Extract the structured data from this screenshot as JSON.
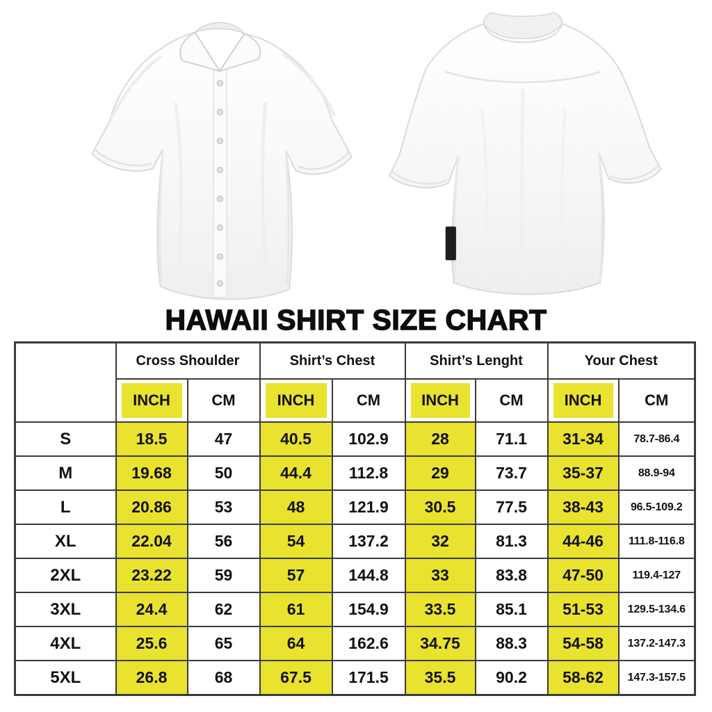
{
  "title": "HAWAII SHIRT SIZE CHART",
  "colors": {
    "highlight_yellow": "#e9e22f",
    "table_border": "#3a3a3a",
    "text": "#111111",
    "background": "#ffffff"
  },
  "images": {
    "front_shirt_alt": "white short-sleeve button-up shirt, front view",
    "back_shirt_alt": "white short-sleeve button-up shirt, back view with side tag"
  },
  "size_chart": {
    "groups": [
      "Cross Shoulder",
      "Shirt’s Chest",
      "Shirt’s Lenght",
      "Your Chest"
    ],
    "unit_headers": [
      "INCH",
      "CM"
    ],
    "rows": [
      {
        "size": "S",
        "values": [
          "18.5",
          "47",
          "40.5",
          "102.9",
          "28",
          "71.1",
          "31-34",
          "78.7-86.4"
        ]
      },
      {
        "size": "M",
        "values": [
          "19.68",
          "50",
          "44.4",
          "112.8",
          "29",
          "73.7",
          "35-37",
          "88.9-94"
        ]
      },
      {
        "size": "L",
        "values": [
          "20.86",
          "53",
          "48",
          "121.9",
          "30.5",
          "77.5",
          "38-43",
          "96.5-109.2"
        ]
      },
      {
        "size": "XL",
        "values": [
          "22.04",
          "56",
          "54",
          "137.2",
          "32",
          "81.3",
          "44-46",
          "111.8-116.8"
        ]
      },
      {
        "size": "2XL",
        "values": [
          "23.22",
          "59",
          "57",
          "144.8",
          "33",
          "83.8",
          "47-50",
          "119.4-127"
        ]
      },
      {
        "size": "3XL",
        "values": [
          "24.4",
          "62",
          "61",
          "154.9",
          "33.5",
          "85.1",
          "51-53",
          "129.5-134.6"
        ]
      },
      {
        "size": "4XL",
        "values": [
          "25.6",
          "65",
          "64",
          "162.6",
          "34.75",
          "88.3",
          "54-58",
          "137.2-147.3"
        ]
      },
      {
        "size": "5XL",
        "values": [
          "26.8",
          "68",
          "67.5",
          "171.5",
          "35.5",
          "90.2",
          "58-62",
          "147.3-157.5"
        ]
      }
    ]
  }
}
